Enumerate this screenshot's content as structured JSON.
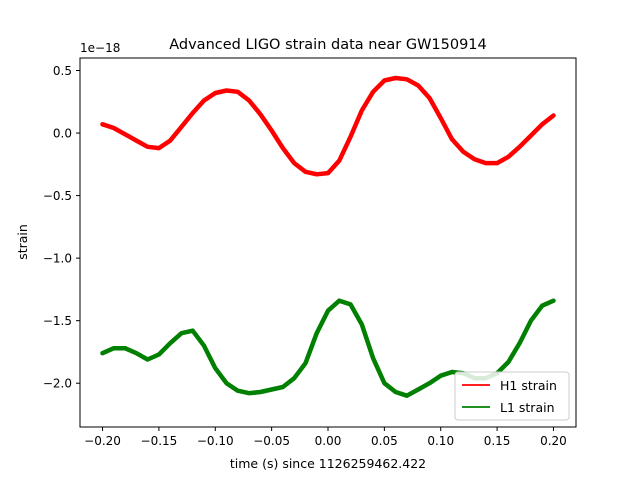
{
  "chart_data": {
    "type": "line",
    "title": "Advanced LIGO strain data near GW150914",
    "xlabel": "time (s) since 1126259462.422",
    "ylabel": "strain",
    "offset_label": "1e−18",
    "xlim": [
      -0.22,
      0.22
    ],
    "ylim": [
      -2.35,
      0.6
    ],
    "x_ticks": [
      -0.2,
      -0.15,
      -0.1,
      -0.05,
      0.0,
      0.05,
      0.1,
      0.15,
      0.2
    ],
    "x_tick_labels": [
      "−0.20",
      "−0.15",
      "−0.10",
      "−0.05",
      "0.00",
      "0.05",
      "0.10",
      "0.15",
      "0.20"
    ],
    "y_ticks": [
      0.5,
      0.0,
      -0.5,
      -1.0,
      -1.5,
      -2.0
    ],
    "y_tick_labels": [
      "0.5",
      "0.0",
      "−0.5",
      "−1.0",
      "−1.5",
      "−2.0"
    ],
    "grid": false,
    "legend_position": "lower right",
    "series": [
      {
        "name": "H1 strain",
        "color": "#ff0000",
        "x": [
          -0.2,
          -0.19,
          -0.18,
          -0.17,
          -0.16,
          -0.15,
          -0.14,
          -0.13,
          -0.12,
          -0.11,
          -0.1,
          -0.09,
          -0.08,
          -0.07,
          -0.06,
          -0.05,
          -0.04,
          -0.03,
          -0.02,
          -0.01,
          0.0,
          0.01,
          0.02,
          0.03,
          0.04,
          0.05,
          0.06,
          0.07,
          0.08,
          0.09,
          0.1,
          0.11,
          0.12,
          0.13,
          0.14,
          0.15,
          0.16,
          0.17,
          0.18,
          0.19,
          0.2
        ],
        "y": [
          0.07,
          0.04,
          -0.01,
          -0.06,
          -0.11,
          -0.12,
          -0.06,
          0.05,
          0.16,
          0.26,
          0.32,
          0.34,
          0.33,
          0.26,
          0.15,
          0.02,
          -0.12,
          -0.24,
          -0.31,
          -0.33,
          -0.32,
          -0.22,
          -0.03,
          0.18,
          0.33,
          0.42,
          0.44,
          0.43,
          0.38,
          0.28,
          0.12,
          -0.05,
          -0.15,
          -0.21,
          -0.24,
          -0.24,
          -0.19,
          -0.11,
          -0.02,
          0.07,
          0.14
        ]
      },
      {
        "name": "L1 strain",
        "color": "#008000",
        "x": [
          -0.2,
          -0.19,
          -0.18,
          -0.17,
          -0.16,
          -0.15,
          -0.14,
          -0.13,
          -0.12,
          -0.11,
          -0.1,
          -0.09,
          -0.08,
          -0.07,
          -0.06,
          -0.05,
          -0.04,
          -0.03,
          -0.02,
          -0.01,
          0.0,
          0.01,
          0.02,
          0.03,
          0.04,
          0.05,
          0.06,
          0.07,
          0.08,
          0.09,
          0.1,
          0.11,
          0.12,
          0.13,
          0.14,
          0.15,
          0.16,
          0.17,
          0.18,
          0.19,
          0.2
        ],
        "y": [
          -1.76,
          -1.72,
          -1.72,
          -1.76,
          -1.81,
          -1.77,
          -1.68,
          -1.6,
          -1.58,
          -1.7,
          -1.88,
          -2.0,
          -2.06,
          -2.08,
          -2.07,
          -2.05,
          -2.03,
          -1.96,
          -1.84,
          -1.6,
          -1.42,
          -1.34,
          -1.37,
          -1.53,
          -1.8,
          -2.0,
          -2.07,
          -2.1,
          -2.05,
          -2.0,
          -1.94,
          -1.91,
          -1.92,
          -1.96,
          -1.96,
          -1.92,
          -1.83,
          -1.68,
          -1.5,
          -1.38,
          -1.34
        ]
      }
    ]
  }
}
